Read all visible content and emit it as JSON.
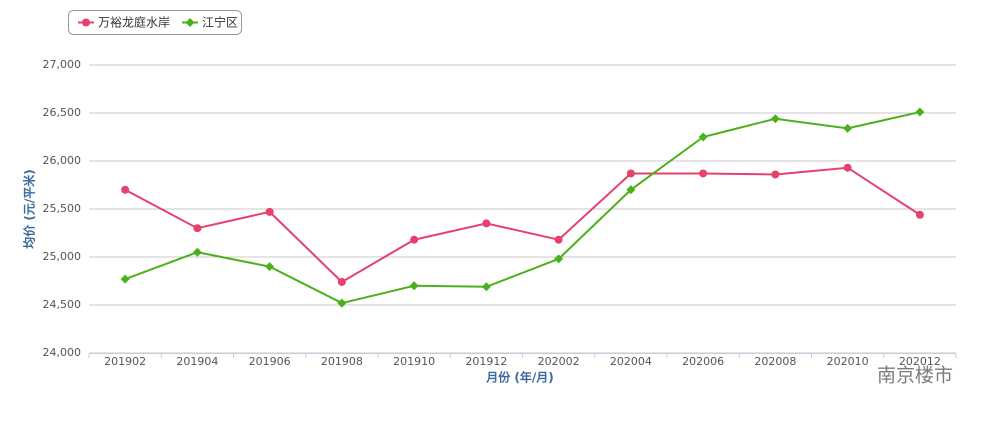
{
  "chart_data": {
    "type": "line",
    "y_label": "均价 (元/平米)",
    "x_label": "月份 (年/月)",
    "watermark": "南京楼市",
    "categories": [
      "201902",
      "201904",
      "201906",
      "201908",
      "201910",
      "201912",
      "202002",
      "202004",
      "202006",
      "202008",
      "202010",
      "202012"
    ],
    "series": [
      {
        "name": "万裕龙庭水岸",
        "color": "#e5416c",
        "marker": "circle",
        "values": [
          25700,
          25300,
          25470,
          24740,
          25180,
          25350,
          25180,
          25870,
          25870,
          25860,
          25930,
          25440
        ]
      },
      {
        "name": "江宁区",
        "color": "#4cb01b",
        "marker": "diamond",
        "values": [
          24770,
          25050,
          24900,
          24520,
          24700,
          24690,
          24980,
          25700,
          26250,
          26440,
          26340,
          26510
        ]
      }
    ],
    "ylim": [
      24000,
      27000
    ],
    "yticks": [
      {
        "value": 24000,
        "label": "24,000"
      },
      {
        "value": 24500,
        "label": "24,500"
      },
      {
        "value": 25000,
        "label": "25,000"
      },
      {
        "value": 25500,
        "label": "25,500"
      },
      {
        "value": 26000,
        "label": "26,000"
      },
      {
        "value": 26500,
        "label": "26,500"
      },
      {
        "value": 27000,
        "label": "27,000"
      }
    ],
    "grid": true,
    "legend": "top-left"
  }
}
